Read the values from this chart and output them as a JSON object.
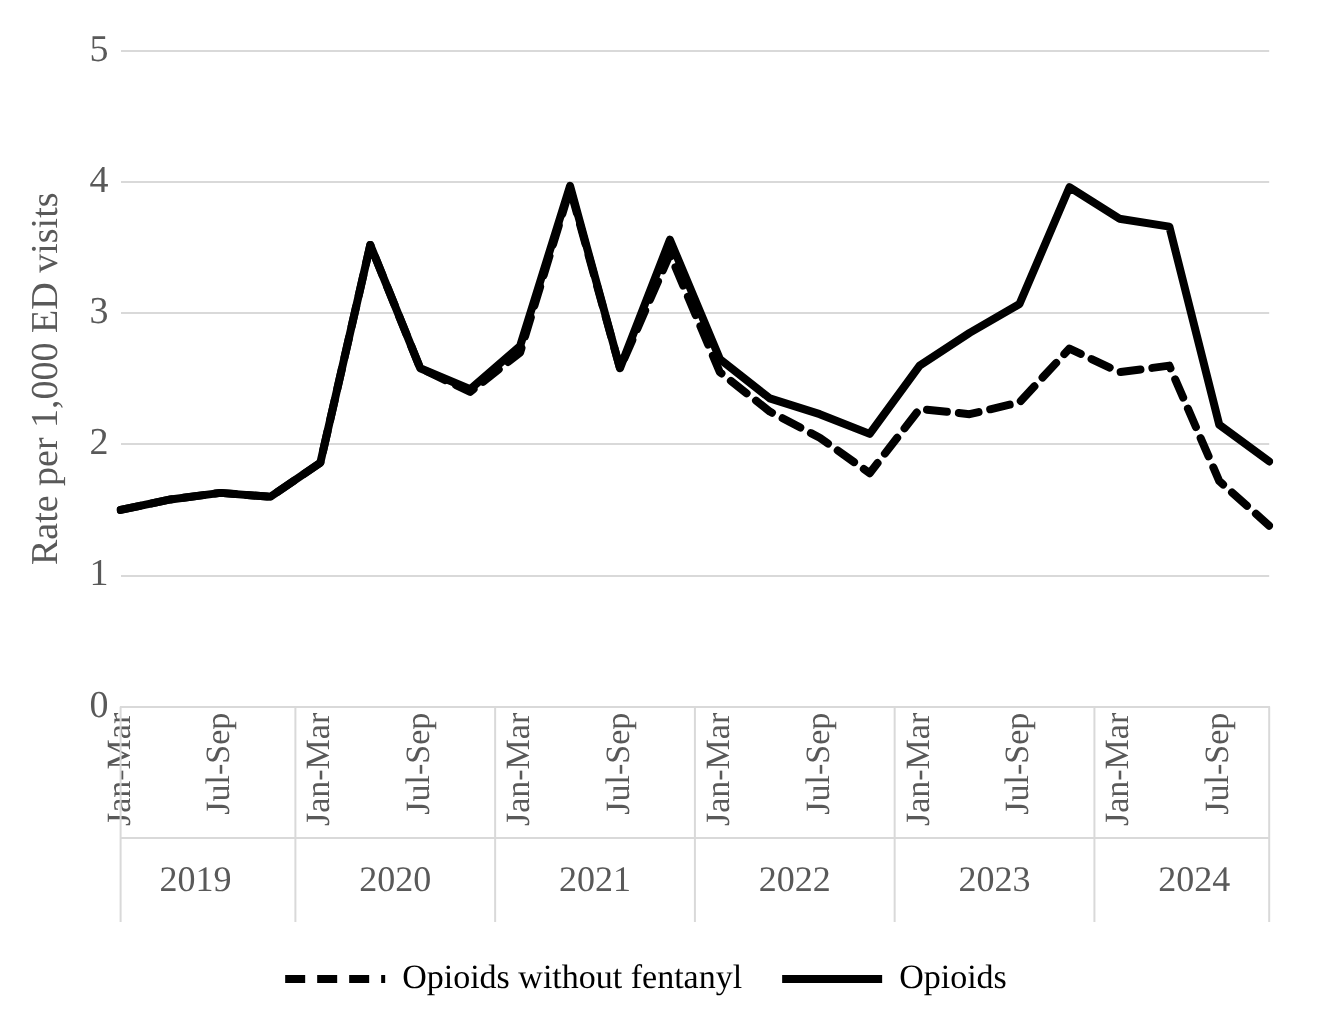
{
  "chart_data": {
    "type": "line",
    "ylabel": "Rate per 1,000 ED visits",
    "categories": [
      "Jan-Mar",
      null,
      "Jul-Sep",
      null,
      "Jan-Mar",
      null,
      "Jul-Sep",
      null,
      "Jan-Mar",
      null,
      "Jul-Sep",
      null,
      "Jan-Mar",
      null,
      "Jul-Sep",
      null,
      "Jan-Mar",
      null,
      "Jul-Sep",
      null,
      "Jan-Mar",
      null,
      "Jul-Sep",
      null
    ],
    "annotations": [
      "2019",
      "2020",
      "2021",
      "2022",
      "2023",
      "2024"
    ],
    "series": [
      {
        "name": "Opioids without fentanyl",
        "color": "#000000",
        "line_style": "dashed",
        "values": [
          1.5,
          1.58,
          1.63,
          1.6,
          1.86,
          3.52,
          2.58,
          2.4,
          2.7,
          3.95,
          2.58,
          3.45,
          2.55,
          2.25,
          2.05,
          1.78,
          2.27,
          2.23,
          2.32,
          2.73,
          2.55,
          2.6,
          1.72,
          1.38
        ]
      },
      {
        "name": "Opioids",
        "color": "#000000",
        "line_style": "solid",
        "values": [
          1.5,
          1.58,
          1.63,
          1.6,
          1.86,
          3.52,
          2.58,
          2.42,
          2.75,
          3.97,
          2.58,
          3.56,
          2.65,
          2.35,
          2.23,
          2.08,
          2.6,
          2.85,
          3.07,
          3.96,
          3.72,
          3.66,
          2.15,
          1.87
        ]
      }
    ],
    "ylim": [
      0,
      5
    ],
    "yticks": [
      0,
      1,
      2,
      3,
      4,
      5
    ],
    "grid": "y",
    "legend": "bottom",
    "marker": "none"
  }
}
